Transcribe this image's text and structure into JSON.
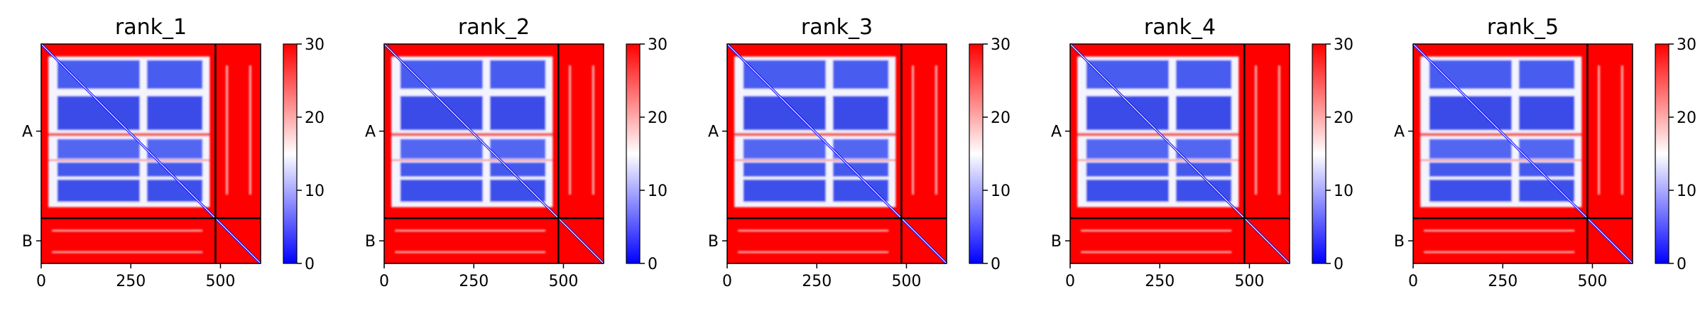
{
  "chart_data": {
    "type": "heatmap",
    "x_ticks": [
      0,
      250,
      500
    ],
    "x_range": [
      0,
      612
    ],
    "chains": [
      {
        "label": "A",
        "end": 486
      },
      {
        "label": "B",
        "end": 612
      }
    ],
    "colorbar": {
      "min": 0,
      "max": 30,
      "ticks": [
        0,
        10,
        20,
        30
      ],
      "colors": [
        "#0000ff",
        "#ffffff",
        "#ff0000"
      ]
    },
    "panels": [
      {
        "title": "rank_1"
      },
      {
        "title": "rank_2"
      },
      {
        "title": "rank_3"
      },
      {
        "title": "rank_4"
      },
      {
        "title": "rank_5"
      }
    ]
  }
}
